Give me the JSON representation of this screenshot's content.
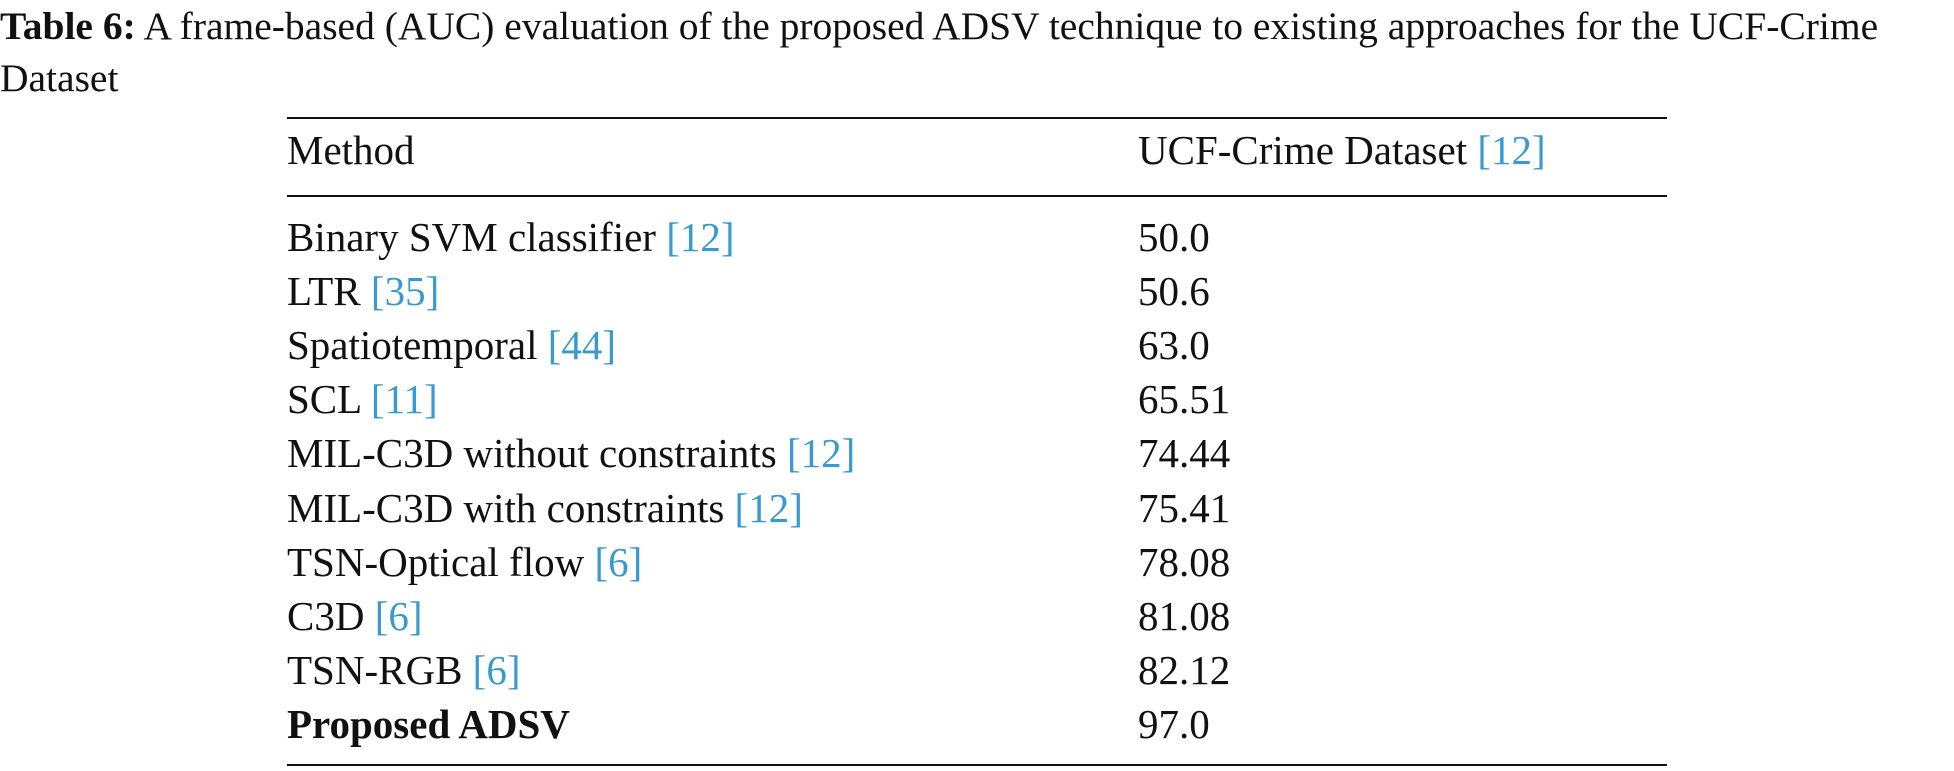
{
  "caption": {
    "label": "Table 6:",
    "text": "A frame-based (AUC) evaluation of the proposed ADSV technique to existing approaches for the UCF-Crime Dataset"
  },
  "table": {
    "header": {
      "method": "Method",
      "dataset": "UCF-Crime Dataset",
      "ref": "[12]"
    },
    "rows": [
      {
        "method": "Binary SVM classifier",
        "ref": "[12]",
        "value": "50.0"
      },
      {
        "method": "LTR",
        "ref": "[35]",
        "value": "50.6"
      },
      {
        "method": "Spatiotemporal",
        "ref": "[44]",
        "value": "63.0"
      },
      {
        "method": "SCL",
        "ref": "[11]",
        "value": "65.51"
      },
      {
        "method": "MIL-C3D without constraints",
        "ref": "[12]",
        "value": "74.44"
      },
      {
        "method": "MIL-C3D with constraints",
        "ref": "[12]",
        "value": "75.41"
      },
      {
        "method": "TSN-Optical flow",
        "ref": "[6]",
        "value": "78.08"
      },
      {
        "method": "C3D",
        "ref": "[6]",
        "value": "81.08"
      },
      {
        "method": "TSN-RGB",
        "ref": "[6]",
        "value": "82.12"
      },
      {
        "method": "Proposed ADSV",
        "bold": true,
        "value": "97.0"
      }
    ]
  }
}
